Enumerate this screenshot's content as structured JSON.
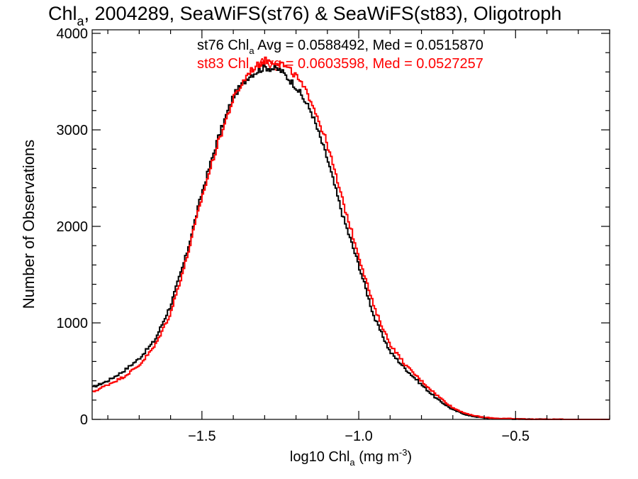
{
  "chart_data": {
    "type": "line",
    "title_main": "Chl",
    "title_sub": "a",
    "title_rest": ", 2004289, SeaWiFS(st76) & SeaWiFS(st83), Oligotroph",
    "xlabel_main": "log10 Chl",
    "xlabel_sub": "a",
    "xlabel_units": " (mg m",
    "xlabel_sup": "-3",
    "xlabel_close": ")",
    "ylabel": "Number of Observations",
    "xlim": [
      -1.85,
      -0.2
    ],
    "ylim": [
      0,
      4000
    ],
    "xticks": [
      -1.5,
      -1.0,
      -0.5
    ],
    "xtick_labels": [
      "−1.5",
      "−1.0",
      "−0.5"
    ],
    "yticks": [
      0,
      1000,
      2000,
      3000,
      4000
    ],
    "ytick_labels": [
      "0",
      "1000",
      "2000",
      "3000",
      "4000"
    ],
    "grid": false,
    "series": [
      {
        "name": "st76",
        "color": "#000000",
        "legend_prefix": "st76 Chl",
        "legend_sub": "a",
        "legend_suffix": " Avg = 0.0588492, Med = 0.0515870",
        "x": [
          -1.85,
          -1.8,
          -1.75,
          -1.7,
          -1.65,
          -1.6,
          -1.55,
          -1.5,
          -1.45,
          -1.4,
          -1.35,
          -1.3,
          -1.25,
          -1.2,
          -1.15,
          -1.1,
          -1.05,
          -1.0,
          -0.95,
          -0.9,
          -0.85,
          -0.8,
          -0.75,
          -0.7,
          -0.65,
          -0.6,
          -0.55,
          -0.5,
          -0.45,
          -0.4,
          -0.35,
          -0.3,
          -0.25,
          -0.2
        ],
        "y": [
          330,
          400,
          500,
          630,
          820,
          1180,
          1700,
          2350,
          2900,
          3350,
          3560,
          3650,
          3620,
          3450,
          3180,
          2700,
          2100,
          1600,
          1050,
          700,
          520,
          360,
          210,
          100,
          40,
          15,
          8,
          4,
          2,
          1,
          0,
          0,
          0,
          0
        ]
      },
      {
        "name": "st83",
        "color": "#ff0000",
        "legend_prefix": "st83 Chl",
        "legend_sub": "a",
        "legend_suffix": " Avg = 0.0603598, Med = 0.0527257",
        "x": [
          -1.85,
          -1.8,
          -1.75,
          -1.7,
          -1.65,
          -1.6,
          -1.55,
          -1.5,
          -1.45,
          -1.4,
          -1.35,
          -1.3,
          -1.25,
          -1.2,
          -1.15,
          -1.1,
          -1.05,
          -1.0,
          -0.95,
          -0.9,
          -0.85,
          -0.8,
          -0.75,
          -0.7,
          -0.65,
          -0.6,
          -0.55,
          -0.5,
          -0.45,
          -0.4,
          -0.35,
          -0.3,
          -0.25,
          -0.2
        ],
        "y": [
          280,
          360,
          440,
          560,
          760,
          1100,
          1650,
          2300,
          2850,
          3320,
          3600,
          3720,
          3700,
          3560,
          3300,
          2850,
          2250,
          1700,
          1150,
          780,
          560,
          400,
          250,
          120,
          50,
          20,
          10,
          5,
          2,
          1,
          0,
          0,
          0,
          0
        ]
      }
    ]
  }
}
